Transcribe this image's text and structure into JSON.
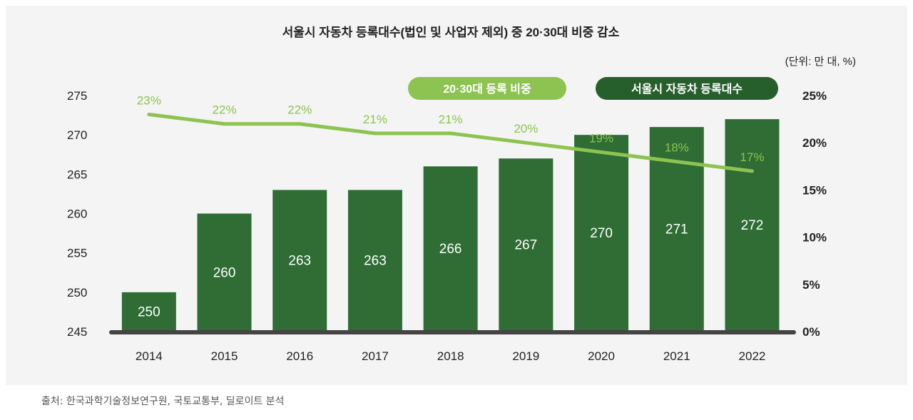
{
  "chart_data": {
    "type": "bar",
    "title": "서울시 자동차 등록대수(법인 및 사업자 제외) 중 20·30대 비중 감소",
    "unit_note": "(단위: 만 대, %)",
    "categories": [
      "2014",
      "2015",
      "2016",
      "2017",
      "2018",
      "2019",
      "2020",
      "2021",
      "2022"
    ],
    "series": [
      {
        "name": "서울시 자동차 등록대수",
        "type": "bar",
        "axis": "left",
        "values": [
          250,
          260,
          263,
          263,
          266,
          267,
          270,
          271,
          272
        ],
        "labels": [
          "250",
          "260",
          "263",
          "263",
          "266",
          "267",
          "270",
          "271",
          "272"
        ]
      },
      {
        "name": "20·30대 등록 비중",
        "type": "line",
        "axis": "right",
        "values": [
          23,
          22,
          22,
          21,
          21,
          20,
          19,
          18,
          17
        ],
        "labels": [
          "23%",
          "22%",
          "22%",
          "21%",
          "21%",
          "20%",
          "19%",
          "18%",
          "17%"
        ]
      }
    ],
    "y_left": {
      "ylim": [
        245,
        275
      ],
      "ticks": [
        "245",
        "250",
        "255",
        "260",
        "265",
        "270",
        "275"
      ]
    },
    "y_right": {
      "ylim": [
        0,
        25
      ],
      "ticks": [
        "0%",
        "5%",
        "10%",
        "15%",
        "20%",
        "25%"
      ]
    },
    "legend": [
      {
        "label": "20·30대 등록 비중",
        "color": "#8dc350"
      },
      {
        "label": "서울시 자동차 등록대수",
        "color": "#275f2c"
      }
    ],
    "colors": {
      "bar": "#2f6d35",
      "line": "#8dc350",
      "axis": "#444444",
      "label": "#8dc350"
    }
  },
  "source": "출처: 한국과학기술정보연구원, 국토교통부, 딜로이트 분석"
}
